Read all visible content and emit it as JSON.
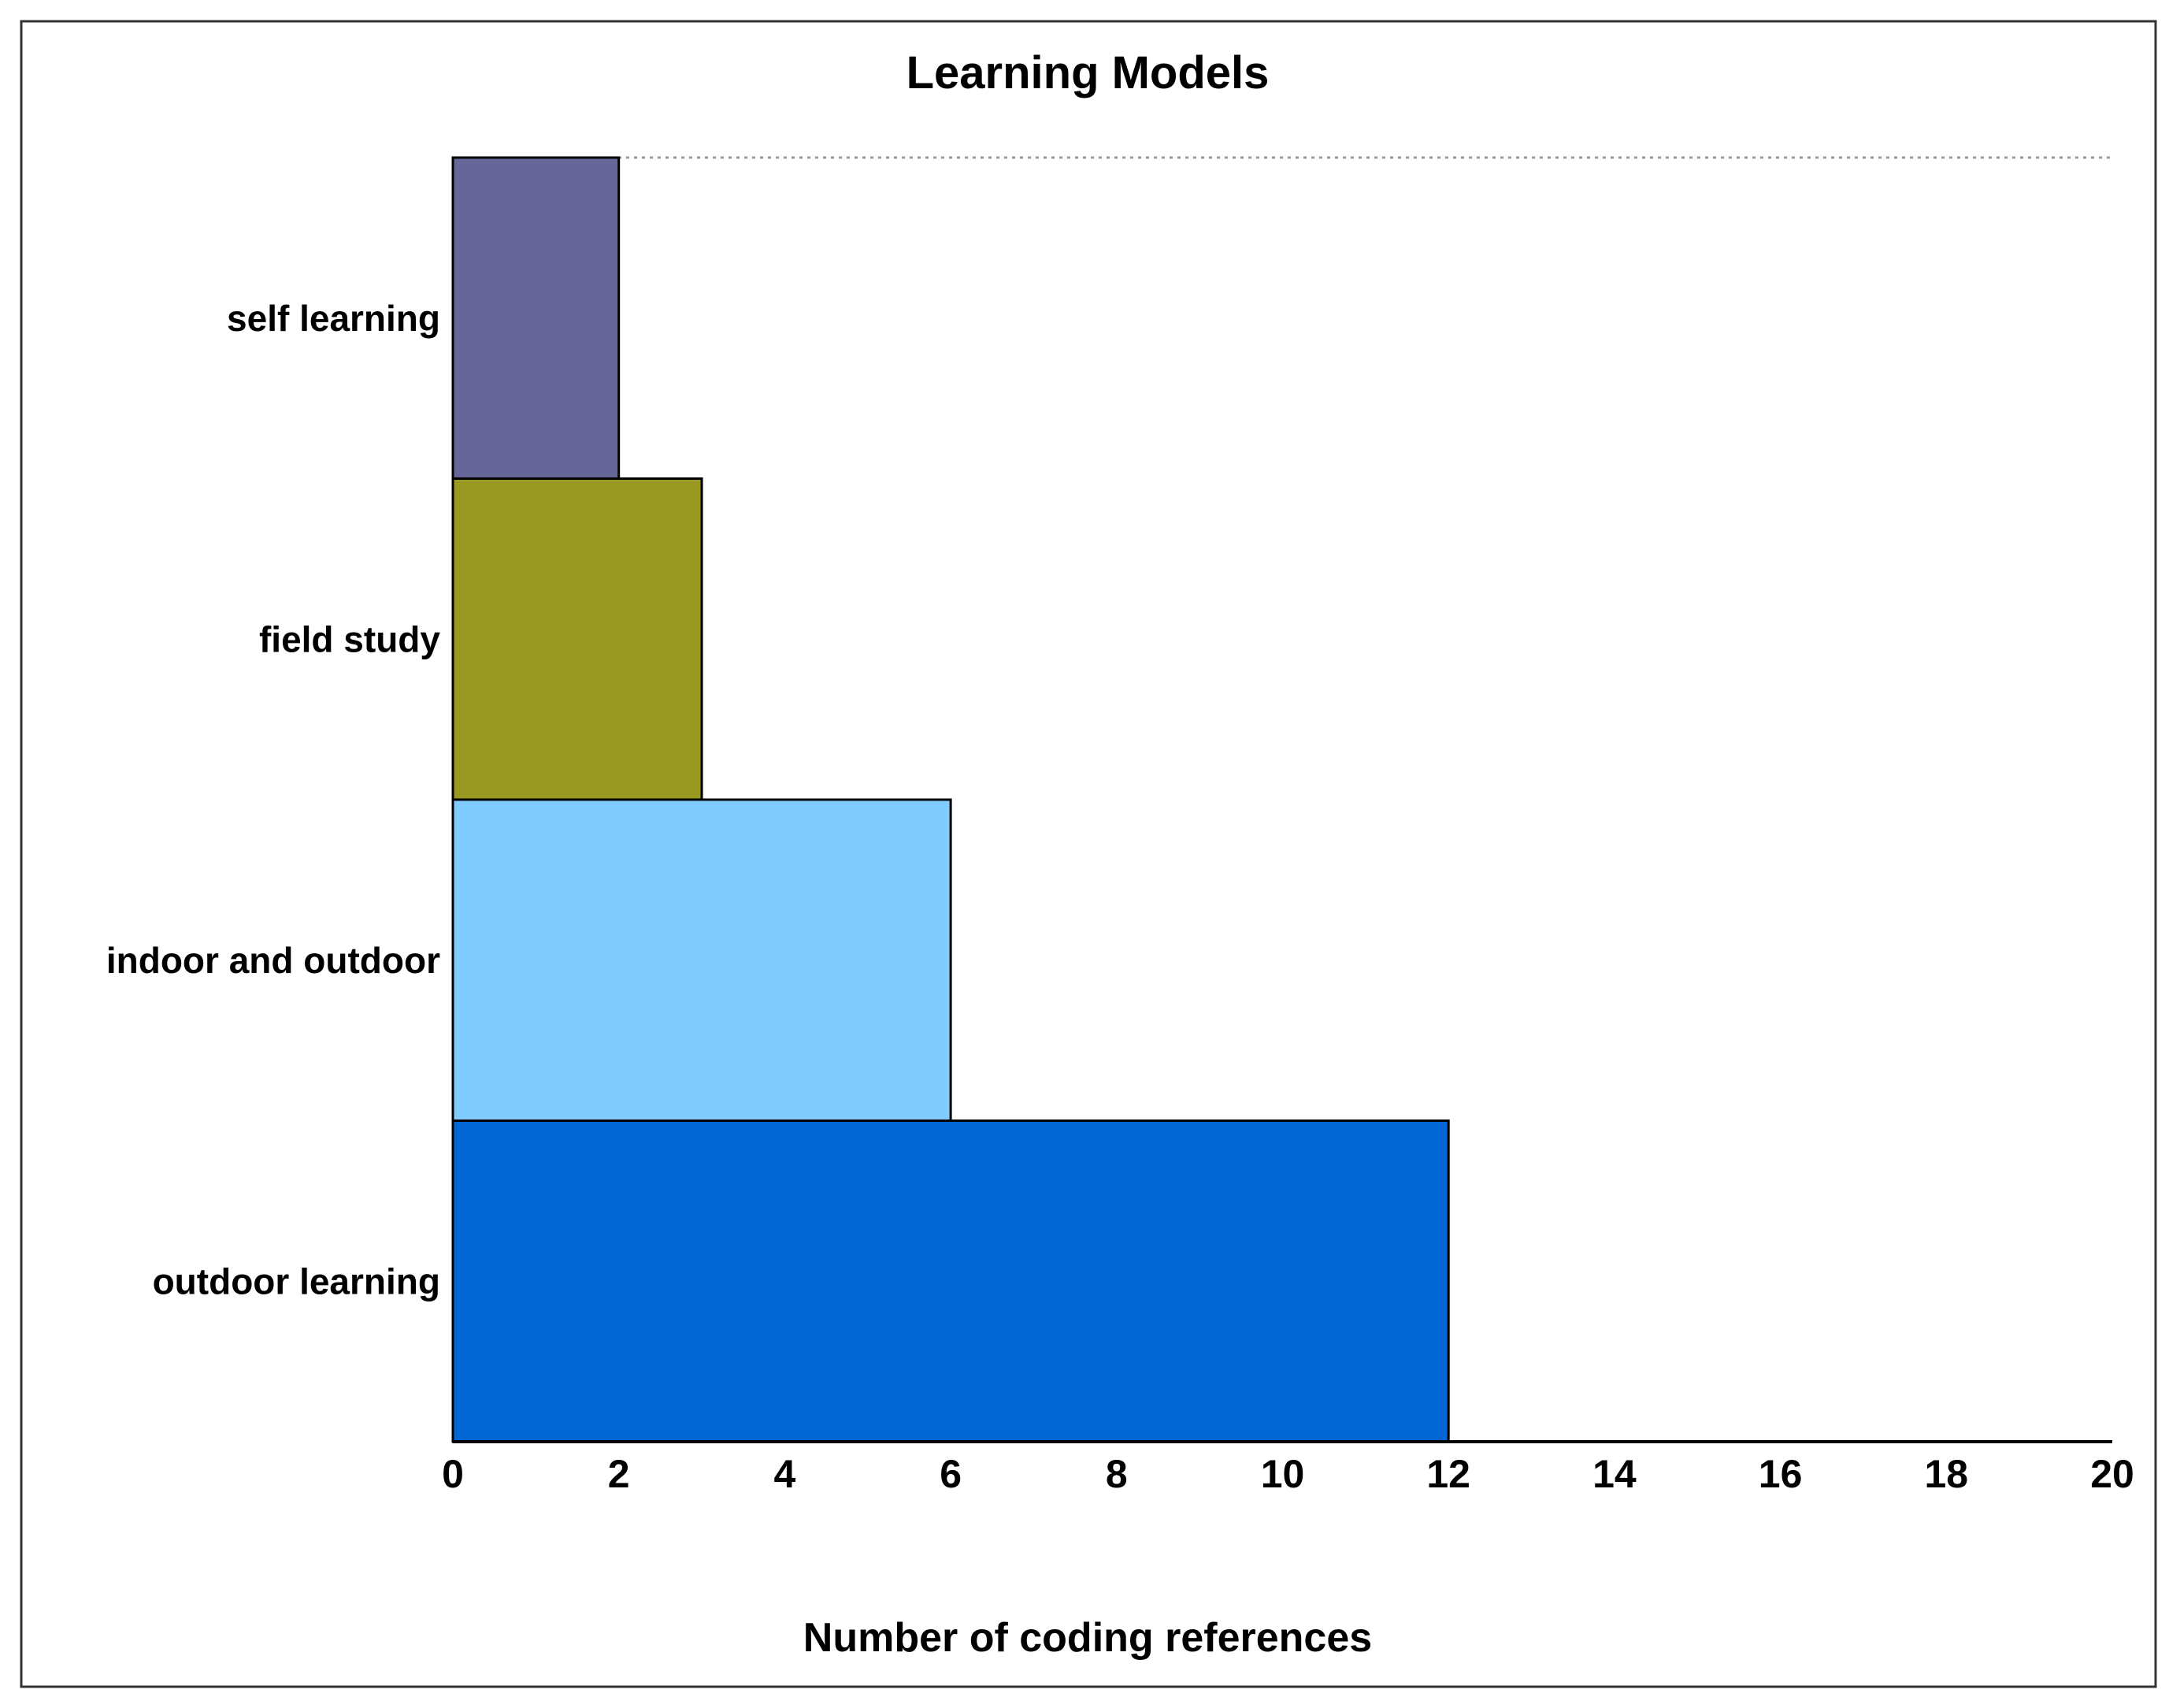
{
  "chart_data": {
    "type": "bar",
    "orientation": "horizontal",
    "title": "Learning Models",
    "xlabel": "Number of coding references",
    "ylabel": "",
    "categories": [
      "self learning",
      "field study",
      "indoor and outdoor",
      "outdoor learning"
    ],
    "values": [
      2,
      3,
      6,
      12
    ],
    "colors": [
      "#666699",
      "#999922",
      "#80CCFF",
      "#0066D4"
    ],
    "xlim": [
      0,
      20
    ],
    "xticks": [
      0,
      2,
      4,
      6,
      8,
      10,
      12,
      14,
      16,
      18,
      20
    ],
    "grid": false,
    "legend": "none"
  }
}
